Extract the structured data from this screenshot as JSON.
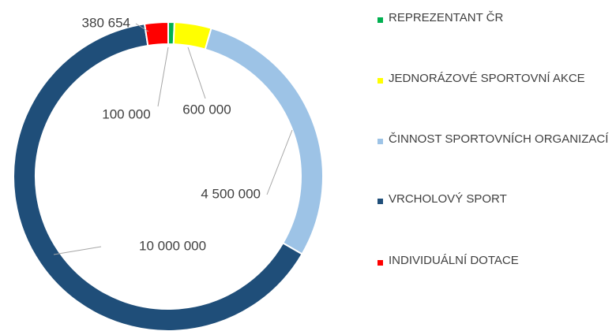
{
  "chart_data": {
    "type": "donut",
    "categories": [
      "REPREZENTANT ČR",
      "JEDNORÁZOVÉ SPORTOVNÍ AKCE",
      "ČINNOST SPORTOVNÍCH ORGANIZACÍ",
      "VRCHOLOVÝ SPORT",
      "INDIVIDUÁLNÍ DOTACE"
    ],
    "values": [
      100000,
      600000,
      4500000,
      10000000,
      380654
    ],
    "value_labels": [
      "100 000",
      "600 000",
      "4 500 000",
      "10 000 000",
      "380 654"
    ],
    "colors": [
      "#00b050",
      "#ffff00",
      "#9dc3e6",
      "#1f4e79",
      "#ff0000"
    ],
    "legend": "right"
  }
}
